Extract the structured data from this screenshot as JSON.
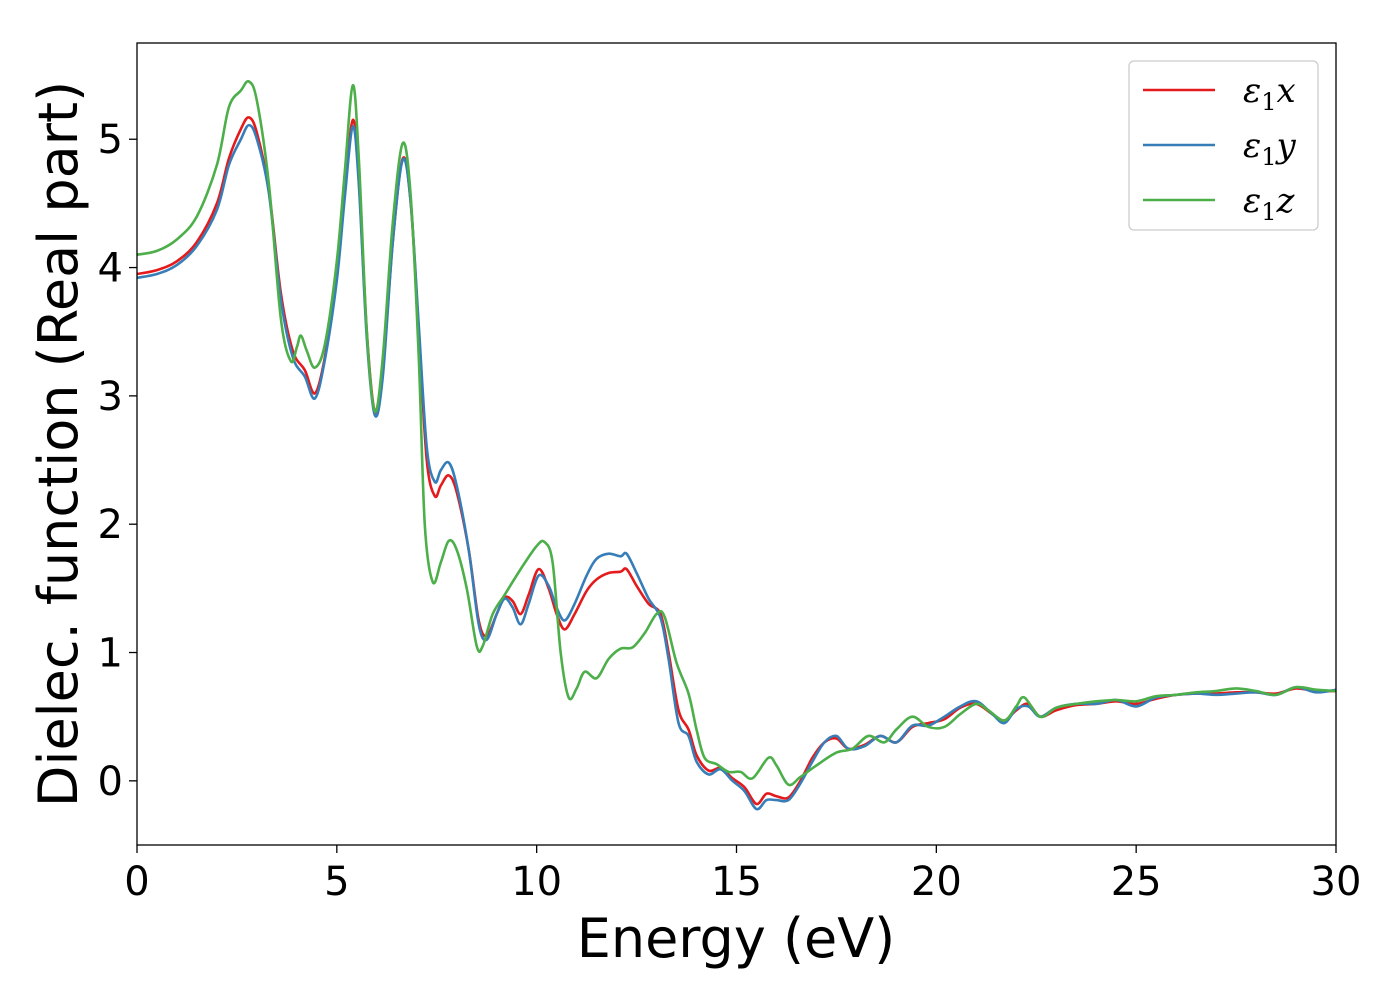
{
  "chart_data": {
    "type": "line",
    "title": "",
    "xlabel": "Energy (eV)",
    "ylabel": "Dielec. function (Real part)",
    "xlim": [
      0,
      30
    ],
    "ylim": [
      -0.5,
      5.75
    ],
    "xticks": [
      0,
      5,
      10,
      15,
      20,
      25,
      30
    ],
    "yticks": [
      0,
      1,
      2,
      3,
      4,
      5
    ],
    "xtick_labels": [
      "0",
      "5",
      "10",
      "15",
      "20",
      "25",
      "30"
    ],
    "ytick_labels": [
      "0",
      "1",
      "2",
      "3",
      "4",
      "5"
    ],
    "grid": false,
    "legend_position": "top-right",
    "series": [
      {
        "name": "ε₁x",
        "legend_main": "ε",
        "legend_sub": "1",
        "legend_tail": "x",
        "color": "#e41a1c",
        "points": [
          [
            0,
            3.95
          ],
          [
            0.5,
            3.98
          ],
          [
            1.0,
            4.05
          ],
          [
            1.5,
            4.2
          ],
          [
            2.0,
            4.5
          ],
          [
            2.3,
            4.85
          ],
          [
            2.6,
            5.08
          ],
          [
            2.8,
            5.17
          ],
          [
            3.0,
            5.05
          ],
          [
            3.3,
            4.6
          ],
          [
            3.6,
            3.8
          ],
          [
            3.9,
            3.35
          ],
          [
            4.2,
            3.2
          ],
          [
            4.45,
            3.02
          ],
          [
            4.7,
            3.3
          ],
          [
            5.0,
            3.95
          ],
          [
            5.2,
            4.6
          ],
          [
            5.4,
            5.15
          ],
          [
            5.55,
            4.7
          ],
          [
            5.75,
            3.5
          ],
          [
            5.95,
            2.88
          ],
          [
            6.15,
            3.2
          ],
          [
            6.4,
            4.2
          ],
          [
            6.65,
            4.85
          ],
          [
            6.85,
            4.5
          ],
          [
            7.05,
            3.5
          ],
          [
            7.25,
            2.5
          ],
          [
            7.45,
            2.22
          ],
          [
            7.6,
            2.3
          ],
          [
            7.8,
            2.38
          ],
          [
            8.0,
            2.25
          ],
          [
            8.3,
            1.8
          ],
          [
            8.55,
            1.25
          ],
          [
            8.75,
            1.13
          ],
          [
            9.0,
            1.3
          ],
          [
            9.2,
            1.43
          ],
          [
            9.4,
            1.4
          ],
          [
            9.6,
            1.3
          ],
          [
            9.8,
            1.45
          ],
          [
            10.05,
            1.65
          ],
          [
            10.3,
            1.5
          ],
          [
            10.5,
            1.3
          ],
          [
            10.7,
            1.18
          ],
          [
            10.95,
            1.3
          ],
          [
            11.25,
            1.48
          ],
          [
            11.5,
            1.57
          ],
          [
            11.8,
            1.62
          ],
          [
            12.1,
            1.63
          ],
          [
            12.25,
            1.65
          ],
          [
            12.5,
            1.52
          ],
          [
            12.8,
            1.38
          ],
          [
            13.1,
            1.3
          ],
          [
            13.3,
            1.0
          ],
          [
            13.55,
            0.55
          ],
          [
            13.8,
            0.4
          ],
          [
            14.0,
            0.2
          ],
          [
            14.3,
            0.08
          ],
          [
            14.6,
            0.1
          ],
          [
            14.9,
            0.02
          ],
          [
            15.2,
            -0.05
          ],
          [
            15.5,
            -0.18
          ],
          [
            15.75,
            -0.1
          ],
          [
            16.0,
            -0.12
          ],
          [
            16.3,
            -0.13
          ],
          [
            16.6,
            0.0
          ],
          [
            16.9,
            0.18
          ],
          [
            17.2,
            0.3
          ],
          [
            17.5,
            0.33
          ],
          [
            17.8,
            0.25
          ],
          [
            18.2,
            0.28
          ],
          [
            18.6,
            0.35
          ],
          [
            19.0,
            0.3
          ],
          [
            19.4,
            0.42
          ],
          [
            19.8,
            0.45
          ],
          [
            20.2,
            0.48
          ],
          [
            20.6,
            0.57
          ],
          [
            21.0,
            0.6
          ],
          [
            21.4,
            0.52
          ],
          [
            21.7,
            0.47
          ],
          [
            22.0,
            0.55
          ],
          [
            22.3,
            0.6
          ],
          [
            22.6,
            0.5
          ],
          [
            23.0,
            0.55
          ],
          [
            23.5,
            0.59
          ],
          [
            24.0,
            0.6
          ],
          [
            24.5,
            0.62
          ],
          [
            25.0,
            0.6
          ],
          [
            25.5,
            0.64
          ],
          [
            26.0,
            0.67
          ],
          [
            26.5,
            0.68
          ],
          [
            27.0,
            0.68
          ],
          [
            27.5,
            0.69
          ],
          [
            28.0,
            0.69
          ],
          [
            28.5,
            0.68
          ],
          [
            29.0,
            0.72
          ],
          [
            29.5,
            0.7
          ],
          [
            30.0,
            0.7
          ]
        ]
      },
      {
        "name": "ε₁y",
        "legend_main": "ε",
        "legend_sub": "1",
        "legend_tail": "y",
        "color": "#377eb8",
        "points": [
          [
            0,
            3.92
          ],
          [
            0.5,
            3.95
          ],
          [
            1.0,
            4.02
          ],
          [
            1.5,
            4.17
          ],
          [
            2.0,
            4.45
          ],
          [
            2.3,
            4.8
          ],
          [
            2.6,
            5.0
          ],
          [
            2.8,
            5.11
          ],
          [
            3.0,
            5.0
          ],
          [
            3.3,
            4.58
          ],
          [
            3.6,
            3.75
          ],
          [
            3.9,
            3.3
          ],
          [
            4.2,
            3.15
          ],
          [
            4.45,
            2.98
          ],
          [
            4.7,
            3.28
          ],
          [
            5.0,
            3.9
          ],
          [
            5.2,
            4.55
          ],
          [
            5.4,
            5.1
          ],
          [
            5.55,
            4.65
          ],
          [
            5.75,
            3.45
          ],
          [
            5.95,
            2.85
          ],
          [
            6.15,
            3.15
          ],
          [
            6.4,
            4.2
          ],
          [
            6.65,
            4.84
          ],
          [
            6.85,
            4.5
          ],
          [
            7.05,
            3.55
          ],
          [
            7.25,
            2.6
          ],
          [
            7.45,
            2.33
          ],
          [
            7.6,
            2.42
          ],
          [
            7.8,
            2.48
          ],
          [
            8.0,
            2.3
          ],
          [
            8.3,
            1.8
          ],
          [
            8.55,
            1.22
          ],
          [
            8.75,
            1.1
          ],
          [
            9.0,
            1.3
          ],
          [
            9.2,
            1.42
          ],
          [
            9.4,
            1.35
          ],
          [
            9.6,
            1.22
          ],
          [
            9.8,
            1.38
          ],
          [
            10.05,
            1.6
          ],
          [
            10.3,
            1.52
          ],
          [
            10.5,
            1.35
          ],
          [
            10.7,
            1.25
          ],
          [
            10.95,
            1.38
          ],
          [
            11.25,
            1.6
          ],
          [
            11.5,
            1.73
          ],
          [
            11.8,
            1.77
          ],
          [
            12.1,
            1.75
          ],
          [
            12.25,
            1.77
          ],
          [
            12.5,
            1.62
          ],
          [
            12.8,
            1.42
          ],
          [
            13.1,
            1.27
          ],
          [
            13.3,
            0.95
          ],
          [
            13.55,
            0.45
          ],
          [
            13.8,
            0.35
          ],
          [
            14.0,
            0.15
          ],
          [
            14.3,
            0.05
          ],
          [
            14.6,
            0.09
          ],
          [
            14.9,
            0.0
          ],
          [
            15.2,
            -0.08
          ],
          [
            15.5,
            -0.22
          ],
          [
            15.75,
            -0.15
          ],
          [
            16.0,
            -0.15
          ],
          [
            16.3,
            -0.15
          ],
          [
            16.6,
            -0.02
          ],
          [
            16.9,
            0.15
          ],
          [
            17.2,
            0.3
          ],
          [
            17.5,
            0.35
          ],
          [
            17.8,
            0.25
          ],
          [
            18.2,
            0.27
          ],
          [
            18.6,
            0.35
          ],
          [
            19.0,
            0.3
          ],
          [
            19.4,
            0.43
          ],
          [
            19.8,
            0.43
          ],
          [
            20.2,
            0.5
          ],
          [
            20.6,
            0.58
          ],
          [
            21.0,
            0.62
          ],
          [
            21.4,
            0.52
          ],
          [
            21.7,
            0.45
          ],
          [
            22.0,
            0.56
          ],
          [
            22.3,
            0.58
          ],
          [
            22.6,
            0.5
          ],
          [
            23.0,
            0.57
          ],
          [
            23.5,
            0.6
          ],
          [
            24.0,
            0.6
          ],
          [
            24.5,
            0.63
          ],
          [
            25.0,
            0.58
          ],
          [
            25.5,
            0.65
          ],
          [
            26.0,
            0.67
          ],
          [
            26.5,
            0.68
          ],
          [
            27.0,
            0.67
          ],
          [
            27.5,
            0.68
          ],
          [
            28.0,
            0.69
          ],
          [
            28.5,
            0.67
          ],
          [
            29.0,
            0.73
          ],
          [
            29.5,
            0.69
          ],
          [
            30.0,
            0.71
          ]
        ]
      },
      {
        "name": "ε₁z",
        "legend_main": "ε",
        "legend_sub": "1",
        "legend_tail": "z",
        "color": "#4daf4a",
        "points": [
          [
            0,
            4.1
          ],
          [
            0.5,
            4.13
          ],
          [
            1.0,
            4.22
          ],
          [
            1.5,
            4.4
          ],
          [
            2.0,
            4.8
          ],
          [
            2.3,
            5.25
          ],
          [
            2.6,
            5.38
          ],
          [
            2.8,
            5.45
          ],
          [
            3.0,
            5.3
          ],
          [
            3.3,
            4.65
          ],
          [
            3.6,
            3.6
          ],
          [
            3.85,
            3.27
          ],
          [
            4.0,
            3.38
          ],
          [
            4.1,
            3.47
          ],
          [
            4.25,
            3.35
          ],
          [
            4.45,
            3.22
          ],
          [
            4.7,
            3.4
          ],
          [
            5.0,
            4.05
          ],
          [
            5.2,
            4.75
          ],
          [
            5.4,
            5.42
          ],
          [
            5.55,
            4.85
          ],
          [
            5.75,
            3.5
          ],
          [
            5.95,
            2.88
          ],
          [
            6.15,
            3.3
          ],
          [
            6.4,
            4.35
          ],
          [
            6.65,
            4.97
          ],
          [
            6.85,
            4.55
          ],
          [
            7.05,
            3.3
          ],
          [
            7.2,
            2.0
          ],
          [
            7.4,
            1.55
          ],
          [
            7.6,
            1.7
          ],
          [
            7.8,
            1.87
          ],
          [
            8.0,
            1.8
          ],
          [
            8.25,
            1.5
          ],
          [
            8.5,
            1.05
          ],
          [
            8.65,
            1.05
          ],
          [
            8.9,
            1.3
          ],
          [
            9.2,
            1.45
          ],
          [
            9.6,
            1.65
          ],
          [
            10.0,
            1.83
          ],
          [
            10.2,
            1.86
          ],
          [
            10.4,
            1.7
          ],
          [
            10.6,
            1.0
          ],
          [
            10.8,
            0.65
          ],
          [
            11.0,
            0.72
          ],
          [
            11.2,
            0.85
          ],
          [
            11.5,
            0.8
          ],
          [
            11.8,
            0.95
          ],
          [
            12.1,
            1.03
          ],
          [
            12.4,
            1.04
          ],
          [
            12.7,
            1.15
          ],
          [
            13.0,
            1.3
          ],
          [
            13.2,
            1.28
          ],
          [
            13.5,
            0.92
          ],
          [
            13.8,
            0.68
          ],
          [
            14.0,
            0.4
          ],
          [
            14.2,
            0.18
          ],
          [
            14.5,
            0.13
          ],
          [
            14.8,
            0.07
          ],
          [
            15.1,
            0.07
          ],
          [
            15.4,
            0.02
          ],
          [
            15.8,
            0.18
          ],
          [
            16.0,
            0.12
          ],
          [
            16.3,
            -0.03
          ],
          [
            16.6,
            0.03
          ],
          [
            17.0,
            0.12
          ],
          [
            17.5,
            0.22
          ],
          [
            17.9,
            0.25
          ],
          [
            18.3,
            0.35
          ],
          [
            18.7,
            0.3
          ],
          [
            19.0,
            0.4
          ],
          [
            19.4,
            0.5
          ],
          [
            19.8,
            0.42
          ],
          [
            20.2,
            0.42
          ],
          [
            20.6,
            0.52
          ],
          [
            21.0,
            0.6
          ],
          [
            21.3,
            0.55
          ],
          [
            21.7,
            0.47
          ],
          [
            22.0,
            0.58
          ],
          [
            22.2,
            0.65
          ],
          [
            22.6,
            0.5
          ],
          [
            23.0,
            0.57
          ],
          [
            23.5,
            0.6
          ],
          [
            24.0,
            0.62
          ],
          [
            24.5,
            0.63
          ],
          [
            25.0,
            0.62
          ],
          [
            25.5,
            0.66
          ],
          [
            26.0,
            0.67
          ],
          [
            26.5,
            0.69
          ],
          [
            27.0,
            0.7
          ],
          [
            27.5,
            0.72
          ],
          [
            28.0,
            0.7
          ],
          [
            28.5,
            0.67
          ],
          [
            29.0,
            0.73
          ],
          [
            29.5,
            0.71
          ],
          [
            30.0,
            0.7
          ]
        ]
      }
    ]
  }
}
